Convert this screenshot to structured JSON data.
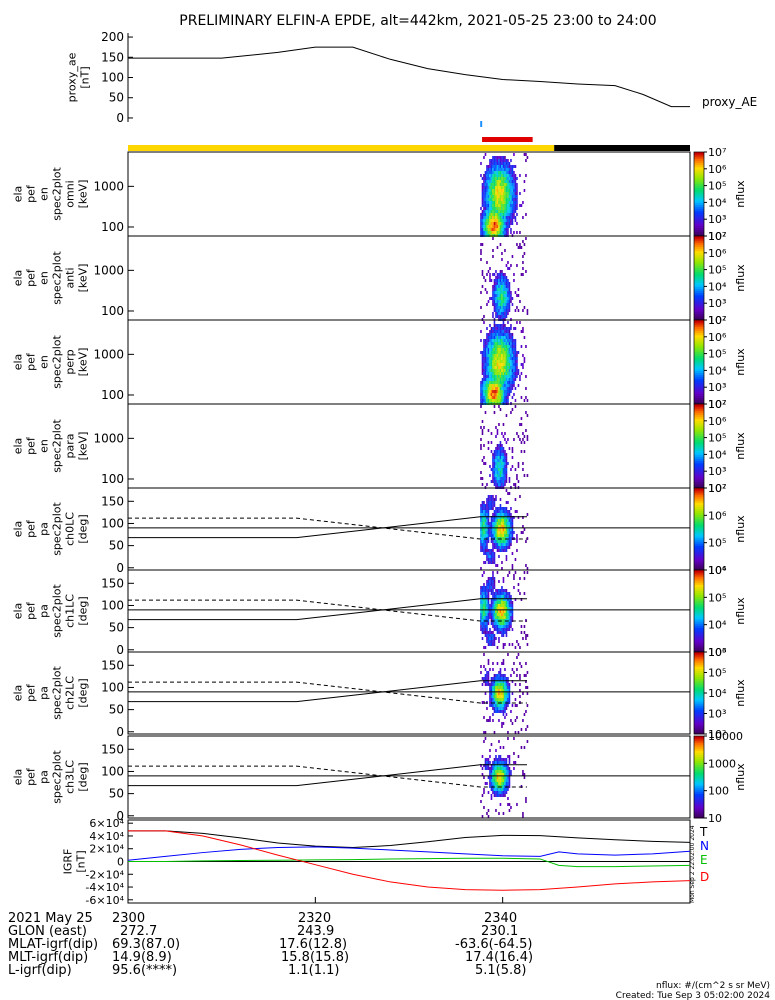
{
  "title": "PRELIMINARY ELFIN-A EPDE, alt=442km, 2021-05-25 23:00 to 24:00",
  "colors": {
    "orbit_yellow": "#FFD700",
    "orbit_black": "#000000",
    "science_zone_red": "#E00000",
    "tick_blue": "#1E90FF",
    "trace_N": "#0000FF",
    "trace_E": "#00C000",
    "trace_D": "#FF0000",
    "trace_T": "#000000"
  },
  "time_axis": {
    "range_min": [
      0,
      60
    ],
    "tick_minutes": [
      0,
      20,
      40
    ],
    "tick_labels": [
      "2300",
      "2320",
      "2340"
    ]
  },
  "ephemeris_table": {
    "rows": [
      {
        "label": "2021 May 25",
        "values": [
          "2300",
          "2320",
          "2340"
        ]
      },
      {
        "label": "GLON (east)",
        "values": [
          "272.7",
          "243.9",
          "230.1"
        ]
      },
      {
        "label": "MLAT-igrf(dip)",
        "values": [
          "69.3(87.0)",
          "17.6(12.8)",
          "-63.6(-64.5)"
        ]
      },
      {
        "label": "MLT-igrf(dip)",
        "values": [
          "14.9(8.9)",
          "15.8(15.8)",
          "17.4(16.4)"
        ]
      },
      {
        "label": "L-igrf(dip)",
        "values": [
          "95.6(****)",
          "1.1(1.1)",
          "5.1(5.8)"
        ]
      }
    ]
  },
  "footer": {
    "units": "nflux: #/(cm^2 s sr MeV)",
    "created": "Created: Tue Sep  3 05:02:00 2024",
    "side_stamp": "Mon Sep  2 22:02:00 2024"
  },
  "chart_data": [
    {
      "type": "line",
      "panel": "proxy_ae",
      "ylabel": [
        "proxy_ae",
        "[nT]"
      ],
      "yticks": [
        0,
        50,
        100,
        150,
        200
      ],
      "ylim": [
        -10,
        210
      ],
      "series": [
        {
          "name": "proxy_AE",
          "x": [
            0,
            10,
            16,
            20,
            24,
            28,
            32,
            36,
            40,
            44,
            48,
            52,
            55,
            58,
            60
          ],
          "y": [
            148,
            148,
            162,
            175,
            175,
            145,
            122,
            107,
            95,
            90,
            84,
            80,
            58,
            28,
            28
          ]
        }
      ]
    },
    {
      "type": "heatmap",
      "panel": "omni",
      "ylabel": [
        "ela",
        "pef",
        "en",
        "spec2plot",
        "omni",
        "[keV]"
      ],
      "yscale": "log",
      "ylim": [
        60,
        7000
      ],
      "yticks": [
        100,
        1000
      ],
      "ytick_labels": [
        "100",
        "1000"
      ],
      "active_interval_min": [
        37.6,
        42.6
      ],
      "colorbar": {
        "label": "nflux",
        "ticks": [
          "10^2",
          "10^3",
          "10^4",
          "10^5",
          "10^6",
          "10^7"
        ]
      }
    },
    {
      "type": "heatmap",
      "panel": "anti",
      "ylabel": [
        "ela",
        "pef",
        "en",
        "spec2plot",
        "anti",
        "[keV]"
      ],
      "yscale": "log",
      "ylim": [
        60,
        7000
      ],
      "yticks": [
        100,
        1000
      ],
      "ytick_labels": [
        "100",
        "1000"
      ],
      "active_interval_min": [
        37.6,
        42.6
      ],
      "colorbar": {
        "label": "nflux",
        "ticks": [
          "10^2",
          "10^3",
          "10^4",
          "10^5",
          "10^6",
          "10^7"
        ]
      }
    },
    {
      "type": "heatmap",
      "panel": "perp",
      "ylabel": [
        "ela",
        "pef",
        "en",
        "spec2plot",
        "perp",
        "[keV]"
      ],
      "yscale": "log",
      "ylim": [
        60,
        7000
      ],
      "yticks": [
        100,
        1000
      ],
      "ytick_labels": [
        "100",
        "1000"
      ],
      "active_interval_min": [
        37.6,
        42.6
      ],
      "colorbar": {
        "label": "nflux",
        "ticks": [
          "10^2",
          "10^3",
          "10^4",
          "10^5",
          "10^6",
          "10^7"
        ]
      }
    },
    {
      "type": "heatmap",
      "panel": "para",
      "ylabel": [
        "ela",
        "pef",
        "en",
        "spec2plot",
        "para",
        "[keV]"
      ],
      "yscale": "log",
      "ylim": [
        60,
        7000
      ],
      "yticks": [
        100,
        1000
      ],
      "ytick_labels": [
        "100",
        "1000"
      ],
      "active_interval_min": [
        37.6,
        42.6
      ],
      "colorbar": {
        "label": "nflux",
        "ticks": [
          "10^2",
          "10^3",
          "10^4",
          "10^5",
          "10^6",
          "10^7"
        ]
      }
    },
    {
      "type": "heatmap",
      "panel": "ch0LC",
      "ylabel": [
        "ela",
        "pef",
        "pa",
        "spec2plot",
        "ch0LC",
        "[deg]"
      ],
      "ylim": [
        -5,
        180
      ],
      "yticks": [
        0,
        50,
        100,
        150
      ],
      "active_interval_min": [
        37.6,
        42.6
      ],
      "hline": 90,
      "colorbar": {
        "label": "nflux",
        "ticks": [
          "10^4",
          "10^5",
          "10^6",
          "10^7"
        ]
      }
    },
    {
      "type": "heatmap",
      "panel": "ch1LC",
      "ylabel": [
        "ela",
        "pef",
        "pa",
        "spec2plot",
        "ch1LC",
        "[deg]"
      ],
      "ylim": [
        -5,
        180
      ],
      "yticks": [
        0,
        50,
        100,
        150
      ],
      "active_interval_min": [
        37.6,
        42.6
      ],
      "hline": 90,
      "colorbar": {
        "label": "nflux",
        "ticks": [
          "10^3",
          "10^4",
          "10^5",
          "10^6"
        ]
      }
    },
    {
      "type": "heatmap",
      "panel": "ch2LC",
      "ylabel": [
        "ela",
        "pef",
        "pa",
        "spec2plot",
        "ch2LC",
        "[deg]"
      ],
      "ylim": [
        -5,
        180
      ],
      "yticks": [
        0,
        50,
        100,
        150
      ],
      "active_interval_min": [
        37.6,
        42.6
      ],
      "hline": 90,
      "colorbar": {
        "label": "nflux",
        "ticks": [
          "10^2",
          "10^3",
          "10^4",
          "10^5",
          "10^6"
        ]
      }
    },
    {
      "type": "heatmap",
      "panel": "ch3LC",
      "ylabel": [
        "ela",
        "pef",
        "pa",
        "spec2plot",
        "ch3LC",
        "[deg]"
      ],
      "ylim": [
        -5,
        180
      ],
      "yticks": [
        0,
        50,
        100,
        150
      ],
      "active_interval_min": [
        37.6,
        42.6
      ],
      "hline": 90,
      "colorbar": {
        "label": "nflux",
        "ticks": [
          "10",
          "100",
          "1000",
          "10000"
        ]
      }
    },
    {
      "type": "line",
      "panel": "IGRF",
      "ylabel": [
        "IGRF",
        "[nT]"
      ],
      "ylim": [
        -65000,
        65000
      ],
      "yticks": [
        -60000,
        -40000,
        -20000,
        0,
        20000,
        40000,
        60000
      ],
      "ytick_labels": [
        "-6×10⁴",
        "-4×10⁴",
        "-2×10⁴",
        "0",
        "2×10⁴",
        "4×10⁴",
        "6×10⁴"
      ],
      "series": [
        {
          "name": "T",
          "x": [
            0,
            4,
            8,
            12,
            16,
            20,
            24,
            28,
            32,
            36,
            40,
            44,
            48,
            52,
            56,
            60
          ],
          "y": [
            48000,
            48000,
            44000,
            37000,
            29000,
            24000,
            22000,
            25000,
            31000,
            37500,
            41000,
            40500,
            37000,
            34000,
            31500,
            30000
          ]
        },
        {
          "name": "N",
          "x": [
            0,
            4,
            8,
            12,
            16,
            20,
            24,
            28,
            32,
            36,
            40,
            44,
            46,
            48,
            52,
            56,
            60
          ],
          "y": [
            2000,
            8000,
            14000,
            19000,
            22000,
            23000,
            21000,
            18000,
            15000,
            12000,
            9000,
            8000,
            15000,
            12000,
            10000,
            12000,
            16000
          ]
        },
        {
          "name": "E",
          "x": [
            0,
            4,
            8,
            12,
            16,
            20,
            24,
            28,
            32,
            36,
            40,
            44,
            46,
            48,
            52,
            56,
            60
          ],
          "y": [
            0,
            0,
            1000,
            1500,
            2000,
            2500,
            3000,
            4000,
            4500,
            5000,
            5000,
            4000,
            -6000,
            -8000,
            -8000,
            -7000,
            -6000
          ]
        },
        {
          "name": "D",
          "x": [
            0,
            4,
            8,
            12,
            16,
            20,
            24,
            28,
            32,
            36,
            40,
            44,
            48,
            52,
            56,
            60
          ],
          "y": [
            48000,
            48000,
            40000,
            26000,
            10000,
            -5000,
            -20000,
            -32000,
            -40000,
            -44000,
            -45000,
            -44000,
            -40000,
            -35000,
            -32000,
            -30000
          ]
        }
      ]
    }
  ]
}
